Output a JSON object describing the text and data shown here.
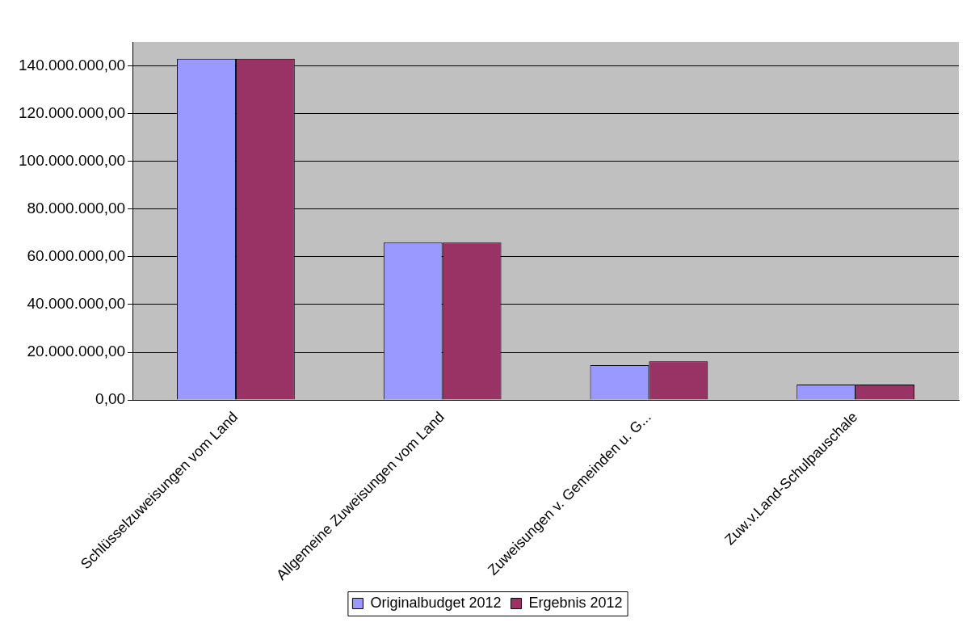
{
  "chart_data": {
    "type": "bar",
    "categories": [
      "Schlüsselzuweisungen vom Land",
      "Allgemeine Zuweisungen vom Land",
      "Zuweisungen v. Gemeinden u. G...",
      "Zuw.v.Land-Schulpauschale"
    ],
    "series": [
      {
        "name": "Originalbudget 2012",
        "color": "#9999ff",
        "values": [
          143000000,
          66000000,
          14600000,
          6500000
        ]
      },
      {
        "name": "Ergebnis 2012",
        "color": "#993366",
        "values": [
          143000000,
          66000000,
          16200000,
          6500000
        ]
      }
    ],
    "ylim": [
      0,
      150000000
    ],
    "yticks": [
      {
        "value": 0,
        "label": "0,00"
      },
      {
        "value": 20000000,
        "label": "20.000.000,00"
      },
      {
        "value": 40000000,
        "label": "40.000.000,00"
      },
      {
        "value": 60000000,
        "label": "60.000.000,00"
      },
      {
        "value": 80000000,
        "label": "80.000.000,00"
      },
      {
        "value": 100000000,
        "label": "100.000.000,00"
      },
      {
        "value": 120000000,
        "label": "120.000.000,00"
      },
      {
        "value": 140000000,
        "label": "140.000.000,00"
      }
    ],
    "grid": "y",
    "legend": "bottom"
  }
}
